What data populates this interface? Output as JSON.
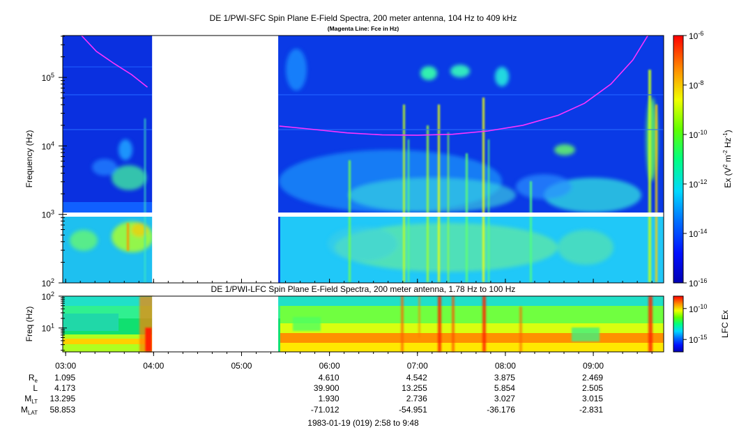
{
  "chart_data": [
    {
      "type": "heatmap",
      "title": "DE 1/PWI-SFC  Spin Plane E-Field Spectra, 200 meter antenna, 104 Hz to 409 kHz",
      "subtitle": "(Magenta Line: Fce in Hz)",
      "ylabel": "Frequency (Hz)",
      "yscale": "log",
      "ylim": [
        100,
        409000
      ],
      "yticks": [
        {
          "v": 100,
          "label": "10",
          "exp": "2"
        },
        {
          "v": 1000,
          "label": "10",
          "exp": "3"
        },
        {
          "v": 10000,
          "label": "10",
          "exp": "4"
        },
        {
          "v": 100000,
          "label": "10",
          "exp": "5"
        }
      ],
      "x_range_hours": [
        2.967,
        9.8
      ],
      "data_gaps_hours": [
        [
          3.983,
          5.417
        ]
      ],
      "fce_line": {
        "color": "#ff33ff",
        "segments": [
          {
            "t": [
              3.18,
              3.35,
              3.55,
              3.75,
              3.93
            ],
            "f": [
              409000,
              240000,
              160000,
              110000,
              72000
            ]
          },
          {
            "t": [
              5.43,
              5.8,
              6.2,
              6.6,
              7.0,
              7.4,
              7.8,
              8.2,
              8.6,
              8.9,
              9.2,
              9.45,
              9.62
            ],
            "f": [
              19500,
              17500,
              15500,
              14500,
              14300,
              14800,
              16500,
              20000,
              28000,
              42000,
              80000,
              180000,
              409000
            ]
          }
        ]
      },
      "colorbar": {
        "label_main": "Ex (V",
        "label_sup1": "2",
        "label_mid": " m",
        "label_sup2": "-2",
        "label_mid2": " Hz",
        "label_sup3": "-1",
        "label_end": ")",
        "range_log10": [
          -16,
          -6
        ],
        "ticks": [
          {
            "v": -6,
            "label": "10",
            "exp": "-6"
          },
          {
            "v": -8,
            "label": "10",
            "exp": "-8"
          },
          {
            "v": -10,
            "label": "10",
            "exp": "-10"
          },
          {
            "v": -12,
            "label": "10",
            "exp": "-12"
          },
          {
            "v": -14,
            "label": "10",
            "exp": "-14"
          },
          {
            "v": -16,
            "label": "10",
            "exp": "-16"
          }
        ]
      }
    },
    {
      "type": "heatmap",
      "title": "DE 1/PWI-LFC  Spin Plane E-Field Spectra, 200 meter antenna, 1.78 Hz to 100 Hz",
      "ylabel": "Freq (Hz)",
      "yscale": "log",
      "ylim": [
        1.78,
        100
      ],
      "yticks": [
        {
          "v": 10,
          "label": "10",
          "exp": "1"
        },
        {
          "v": 100,
          "label": "10",
          "exp": "2"
        }
      ],
      "x_range_hours": [
        2.967,
        9.8
      ],
      "data_gaps_hours": [
        [
          3.983,
          5.417
        ]
      ],
      "colorbar": {
        "label": "LFC Ex",
        "range_log10": [
          -17,
          -8
        ],
        "ticks": [
          {
            "v": -10,
            "label": "10",
            "exp": "-10"
          },
          {
            "v": -15,
            "label": "10",
            "exp": "-15"
          }
        ]
      }
    }
  ],
  "time_axis": {
    "ticks": [
      {
        "h": 3,
        "label": "03:00"
      },
      {
        "h": 4,
        "label": "04:00"
      },
      {
        "h": 5,
        "label": "05:00"
      },
      {
        "h": 6,
        "label": "06:00"
      },
      {
        "h": 7,
        "label": "07:00"
      },
      {
        "h": 8,
        "label": "08:00"
      },
      {
        "h": 9,
        "label": "09:00"
      }
    ]
  },
  "ephemeris": [
    {
      "name": "R",
      "sub": "e",
      "values": [
        "1.095",
        "",
        "",
        "4.610",
        "4.542",
        "3.875",
        "2.469"
      ]
    },
    {
      "name": "L",
      "sub": "",
      "values": [
        "4.173",
        "",
        "",
        "39.900",
        "13.255",
        "5.854",
        "2.505"
      ]
    },
    {
      "name": "M",
      "sub": "LT",
      "values": [
        "13.295",
        "",
        "",
        "1.930",
        "2.736",
        "3.027",
        "3.015"
      ]
    },
    {
      "name": "M",
      "sub": "LAT",
      "values": [
        "58.853",
        "",
        "",
        "-71.012",
        "-54.951",
        "-36.176",
        "-2.831"
      ]
    }
  ],
  "footer": "1983-01-19 (019) 2:58 to 9:48"
}
